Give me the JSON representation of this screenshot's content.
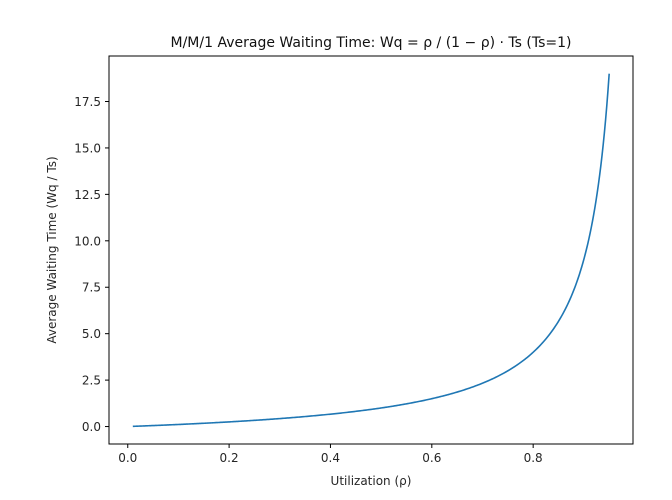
{
  "chart_data": {
    "type": "line",
    "title": "M/M/1 Average Waiting Time: Wq = ρ / (1 − ρ) · Ts (Ts=1)",
    "xlabel": "Utilization (ρ)",
    "ylabel": "Average Waiting Time (Wq / Ts)",
    "xlim": [
      -0.037,
      0.997
    ],
    "ylim": [
      -0.94,
      19.95
    ],
    "xticks": [
      0.0,
      0.2,
      0.4,
      0.6,
      0.8
    ],
    "xtick_labels": [
      "0.0",
      "0.2",
      "0.4",
      "0.6",
      "0.8"
    ],
    "yticks": [
      0.0,
      2.5,
      5.0,
      7.5,
      10.0,
      12.5,
      15.0,
      17.5
    ],
    "ytick_labels": [
      "0.0",
      "2.5",
      "5.0",
      "7.5",
      "10.0",
      "12.5",
      "15.0",
      "17.5"
    ],
    "grid": false,
    "legend": null,
    "series": [
      {
        "name": "Wq",
        "color": "#1f77b4",
        "function": "rho / (1 - rho)",
        "x_range": [
          0.01,
          0.95
        ],
        "x": [
          0.01,
          0.05,
          0.1,
          0.15,
          0.2,
          0.25,
          0.3,
          0.35,
          0.4,
          0.45,
          0.5,
          0.55,
          0.6,
          0.65,
          0.7,
          0.72,
          0.74,
          0.76,
          0.78,
          0.8,
          0.82,
          0.84,
          0.85,
          0.86,
          0.87,
          0.88,
          0.89,
          0.9,
          0.91,
          0.92,
          0.93,
          0.94,
          0.95
        ],
        "y": [
          0.0101,
          0.0526,
          0.1111,
          0.1765,
          0.25,
          0.3333,
          0.4286,
          0.5385,
          0.6667,
          0.8182,
          1.0,
          1.2222,
          1.5,
          1.8571,
          2.3333,
          2.5714,
          2.8462,
          3.1667,
          3.5455,
          4.0,
          4.5556,
          5.25,
          5.6667,
          6.1429,
          6.6923,
          7.3333,
          8.0909,
          9.0,
          10.1111,
          11.5,
          13.2857,
          15.6667,
          19.0
        ]
      }
    ]
  }
}
